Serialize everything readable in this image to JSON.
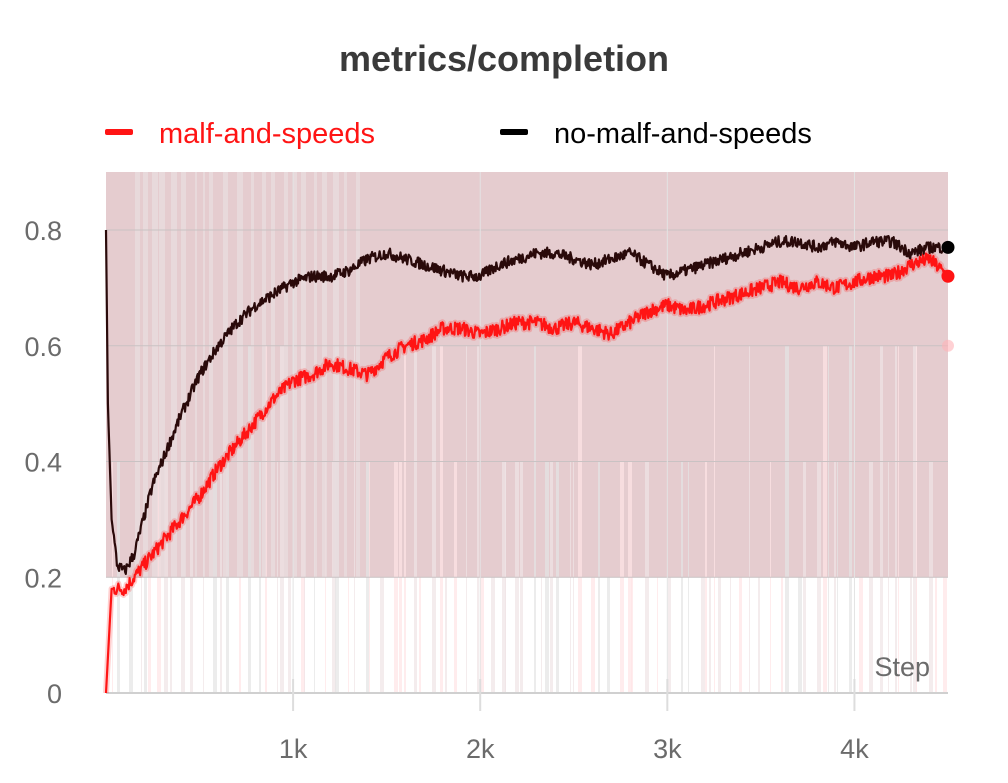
{
  "chart_data": {
    "type": "line",
    "title": "metrics/completion",
    "xlabel": "Step",
    "ylabel": "",
    "xlim": [
      0,
      4500
    ],
    "ylim": [
      0,
      0.8
    ],
    "x_ticks": [
      1000,
      2000,
      3000,
      4000
    ],
    "x_tick_labels": [
      "1k",
      "2k",
      "3k",
      "4k"
    ],
    "y_ticks": [
      0,
      0.2,
      0.4,
      0.6,
      0.8
    ],
    "y_tick_labels": [
      "0",
      "0.2",
      "0.4",
      "0.6",
      "0.8"
    ],
    "grid": true,
    "legend_position": "top",
    "series": [
      {
        "name": "malf-and-speeds",
        "color": "#ff1414",
        "x": [
          0,
          30,
          100,
          200,
          300,
          400,
          500,
          600,
          700,
          800,
          900,
          1000,
          1100,
          1200,
          1300,
          1400,
          1500,
          1600,
          1700,
          1800,
          1900,
          2000,
          2100,
          2200,
          2300,
          2400,
          2500,
          2600,
          2700,
          2800,
          2900,
          3000,
          3100,
          3200,
          3300,
          3400,
          3500,
          3600,
          3700,
          3800,
          3900,
          4000,
          4100,
          4200,
          4300,
          4400,
          4500
        ],
        "values": [
          0.0,
          0.18,
          0.18,
          0.22,
          0.26,
          0.3,
          0.34,
          0.39,
          0.43,
          0.47,
          0.51,
          0.54,
          0.55,
          0.57,
          0.56,
          0.55,
          0.58,
          0.6,
          0.61,
          0.63,
          0.63,
          0.62,
          0.63,
          0.64,
          0.64,
          0.63,
          0.64,
          0.63,
          0.62,
          0.64,
          0.66,
          0.67,
          0.66,
          0.67,
          0.68,
          0.69,
          0.7,
          0.71,
          0.7,
          0.71,
          0.7,
          0.71,
          0.72,
          0.72,
          0.74,
          0.75,
          0.72
        ]
      },
      {
        "name": "no-malf-and-speeds",
        "color": "#000000",
        "x": [
          0,
          10,
          30,
          60,
          100,
          150,
          200,
          250,
          300,
          400,
          500,
          600,
          700,
          800,
          900,
          1000,
          1100,
          1200,
          1300,
          1400,
          1500,
          1600,
          1700,
          1800,
          1900,
          2000,
          2100,
          2200,
          2300,
          2400,
          2500,
          2600,
          2700,
          2800,
          2900,
          3000,
          3100,
          3200,
          3300,
          3400,
          3500,
          3600,
          3700,
          3800,
          3900,
          4000,
          4100,
          4200,
          4300,
          4400,
          4500
        ],
        "values": [
          0.8,
          0.5,
          0.3,
          0.22,
          0.21,
          0.24,
          0.3,
          0.36,
          0.4,
          0.48,
          0.55,
          0.6,
          0.64,
          0.67,
          0.69,
          0.71,
          0.72,
          0.72,
          0.73,
          0.75,
          0.76,
          0.75,
          0.74,
          0.73,
          0.72,
          0.72,
          0.74,
          0.75,
          0.76,
          0.76,
          0.75,
          0.74,
          0.75,
          0.76,
          0.74,
          0.72,
          0.73,
          0.74,
          0.75,
          0.76,
          0.77,
          0.78,
          0.78,
          0.77,
          0.78,
          0.77,
          0.78,
          0.78,
          0.76,
          0.77,
          0.77
        ]
      }
    ],
    "annotations": [
      {
        "label": "malf-and-speeds faded end value",
        "x": 4500,
        "value": 0.6
      }
    ]
  }
}
